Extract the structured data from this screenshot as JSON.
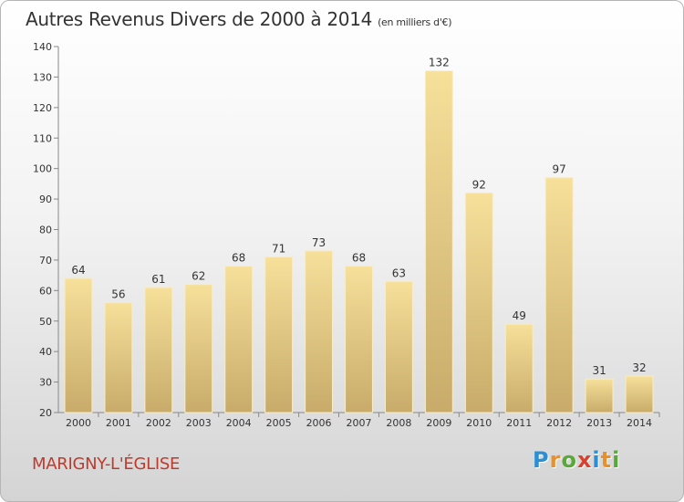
{
  "chart_data": {
    "type": "bar",
    "title": "Autres Revenus Divers de 2000 à 2014",
    "subtitle": "(en milliers d'€)",
    "categories": [
      "2000",
      "2001",
      "2002",
      "2003",
      "2004",
      "2005",
      "2006",
      "2007",
      "2008",
      "2009",
      "2010",
      "2011",
      "2012",
      "2013",
      "2014"
    ],
    "values": [
      64,
      56,
      61,
      62,
      68,
      71,
      73,
      68,
      63,
      132,
      92,
      49,
      97,
      31,
      32
    ],
    "ylim": [
      20,
      140
    ],
    "yticks": [
      20,
      30,
      40,
      50,
      60,
      70,
      80,
      90,
      100,
      110,
      120,
      130,
      140
    ],
    "grid": false,
    "bar_color": "#e6c97a"
  },
  "footer": {
    "place": "MARIGNY-L'ÉGLISE",
    "logo_letters": [
      "P",
      "r",
      "o",
      "x",
      "i",
      "t",
      "i"
    ],
    "logo_colors": [
      "#2b8fd6",
      "#e8902a",
      "#58a83a",
      "#d9412e",
      "#2b8fd6",
      "#e8902a",
      "#58a83a"
    ]
  }
}
